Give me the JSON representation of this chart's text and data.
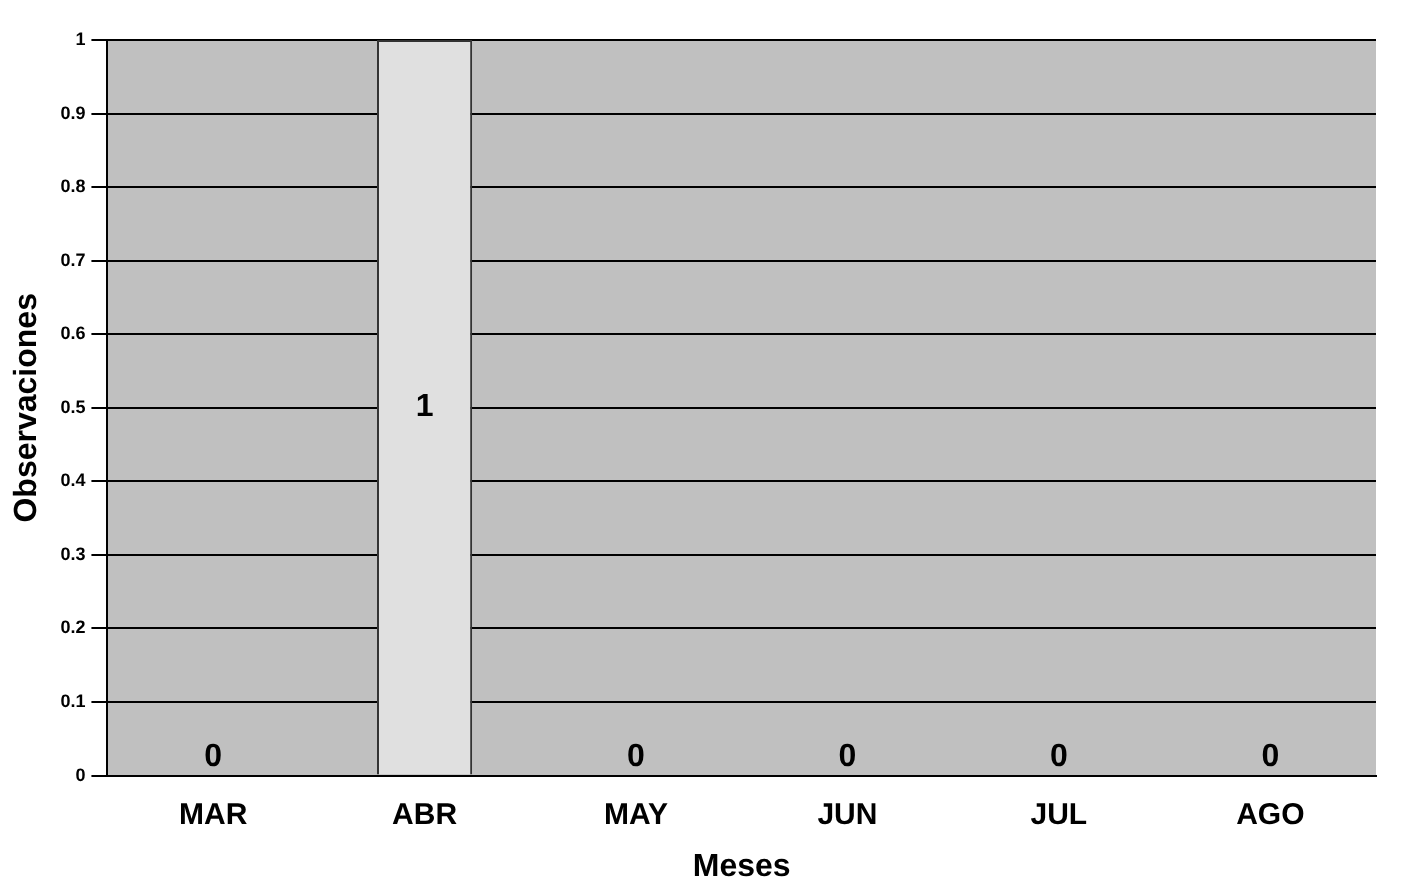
{
  "chart_data": {
    "type": "bar",
    "xlabel": "Meses",
    "ylabel": "Observaciones",
    "categories": [
      "MAR",
      "ABR",
      "MAY",
      "JUN",
      "JUL",
      "AGO"
    ],
    "values": [
      0,
      1,
      0,
      0,
      0,
      0
    ],
    "color": "#e0e0e0",
    "ylim": [
      0,
      1
    ],
    "yticks": [
      0,
      0.1,
      0.2,
      0.3,
      0.4,
      0.5,
      0.6,
      0.7,
      0.8,
      0.9,
      1
    ],
    "grid": "y",
    "data_labels": true,
    "legend": false
  }
}
